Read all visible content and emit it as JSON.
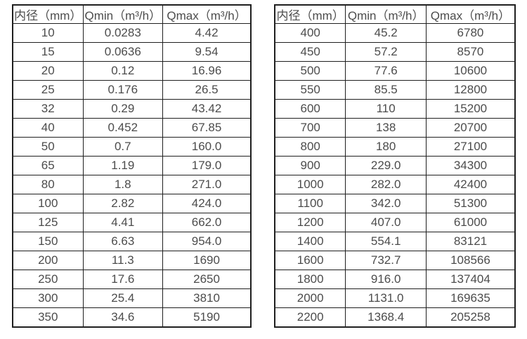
{
  "page": {
    "background": "#ffffff",
    "border_color": "#1f1f1f",
    "text_color": "#4c4c4c"
  },
  "tables": [
    {
      "headers": [
        "内径（mm）",
        "Qmin（m³/h）",
        "Qmax（m³/h）"
      ],
      "rows": [
        [
          "10",
          "0.0283",
          "4.42"
        ],
        [
          "15",
          "0.0636",
          "9.54"
        ],
        [
          "20",
          "0.12",
          "16.96"
        ],
        [
          "25",
          "0.176",
          "26.5"
        ],
        [
          "32",
          "0.29",
          "43.42"
        ],
        [
          "40",
          "0.452",
          "67.85"
        ],
        [
          "50",
          "0.7",
          "160.0"
        ],
        [
          "65",
          "1.19",
          "179.0"
        ],
        [
          "80",
          "1.8",
          "271.0"
        ],
        [
          "100",
          "2.82",
          "424.0"
        ],
        [
          "125",
          "4.41",
          "662.0"
        ],
        [
          "150",
          "6.63",
          "954.0"
        ],
        [
          "200",
          "11.3",
          "1690"
        ],
        [
          "250",
          "17.6",
          "2650"
        ],
        [
          "300",
          "25.4",
          "3810"
        ],
        [
          "350",
          "34.6",
          "5190"
        ]
      ]
    },
    {
      "headers": [
        "内径（mm）",
        "Qmin（m³/h）",
        "Qmax（m³/h）"
      ],
      "rows": [
        [
          "400",
          "45.2",
          "6780"
        ],
        [
          "450",
          "57.2",
          "8570"
        ],
        [
          "500",
          "77.6",
          "10600"
        ],
        [
          "550",
          "85.5",
          "12800"
        ],
        [
          "600",
          "110",
          "15200"
        ],
        [
          "700",
          "138",
          "20700"
        ],
        [
          "800",
          "180",
          "27100"
        ],
        [
          "900",
          "229.0",
          "34300"
        ],
        [
          "1000",
          "282.0",
          "42400"
        ],
        [
          "1100",
          "342.0",
          "51300"
        ],
        [
          "1200",
          "407.0",
          "61000"
        ],
        [
          "1400",
          "554.1",
          "83121"
        ],
        [
          "1600",
          "732.7",
          "108566"
        ],
        [
          "1800",
          "916.0",
          "137404"
        ],
        [
          "2000",
          "1131.0",
          "169635"
        ],
        [
          "2200",
          "1368.4",
          "205258"
        ]
      ]
    }
  ]
}
